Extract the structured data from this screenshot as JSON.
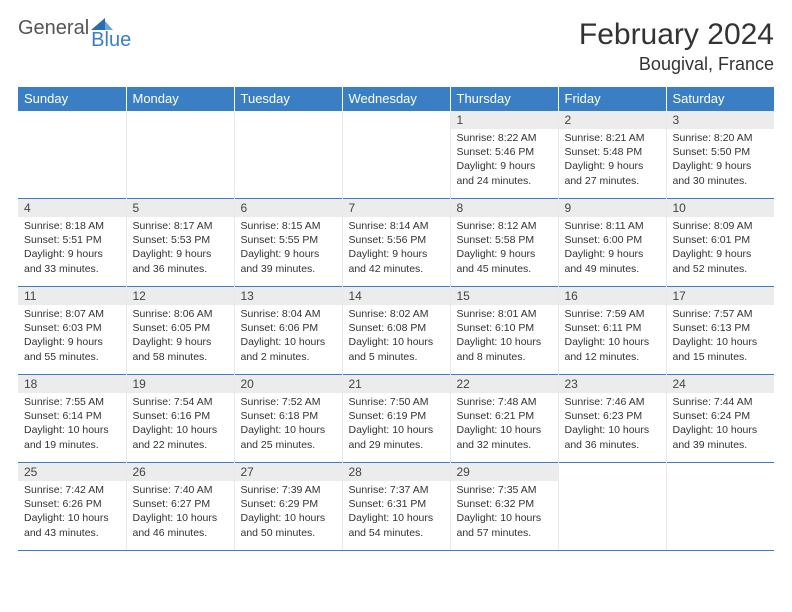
{
  "brand": {
    "part1": "General",
    "part2": "Blue"
  },
  "title": "February 2024",
  "location": "Bougival, France",
  "colors": {
    "header_bg": "#3a7fc4",
    "header_text": "#ffffff",
    "daynum_bg": "#ececec",
    "cell_border": "#e8e8e8",
    "row_divider": "#3a7fc4",
    "text": "#333333"
  },
  "day_labels": [
    "Sunday",
    "Monday",
    "Tuesday",
    "Wednesday",
    "Thursday",
    "Friday",
    "Saturday"
  ],
  "weeks": [
    [
      null,
      null,
      null,
      null,
      {
        "n": "1",
        "sr": "8:22 AM",
        "ss": "5:46 PM",
        "dl": "9 hours and 24 minutes."
      },
      {
        "n": "2",
        "sr": "8:21 AM",
        "ss": "5:48 PM",
        "dl": "9 hours and 27 minutes."
      },
      {
        "n": "3",
        "sr": "8:20 AM",
        "ss": "5:50 PM",
        "dl": "9 hours and 30 minutes."
      }
    ],
    [
      {
        "n": "4",
        "sr": "8:18 AM",
        "ss": "5:51 PM",
        "dl": "9 hours and 33 minutes."
      },
      {
        "n": "5",
        "sr": "8:17 AM",
        "ss": "5:53 PM",
        "dl": "9 hours and 36 minutes."
      },
      {
        "n": "6",
        "sr": "8:15 AM",
        "ss": "5:55 PM",
        "dl": "9 hours and 39 minutes."
      },
      {
        "n": "7",
        "sr": "8:14 AM",
        "ss": "5:56 PM",
        "dl": "9 hours and 42 minutes."
      },
      {
        "n": "8",
        "sr": "8:12 AM",
        "ss": "5:58 PM",
        "dl": "9 hours and 45 minutes."
      },
      {
        "n": "9",
        "sr": "8:11 AM",
        "ss": "6:00 PM",
        "dl": "9 hours and 49 minutes."
      },
      {
        "n": "10",
        "sr": "8:09 AM",
        "ss": "6:01 PM",
        "dl": "9 hours and 52 minutes."
      }
    ],
    [
      {
        "n": "11",
        "sr": "8:07 AM",
        "ss": "6:03 PM",
        "dl": "9 hours and 55 minutes."
      },
      {
        "n": "12",
        "sr": "8:06 AM",
        "ss": "6:05 PM",
        "dl": "9 hours and 58 minutes."
      },
      {
        "n": "13",
        "sr": "8:04 AM",
        "ss": "6:06 PM",
        "dl": "10 hours and 2 minutes."
      },
      {
        "n": "14",
        "sr": "8:02 AM",
        "ss": "6:08 PM",
        "dl": "10 hours and 5 minutes."
      },
      {
        "n": "15",
        "sr": "8:01 AM",
        "ss": "6:10 PM",
        "dl": "10 hours and 8 minutes."
      },
      {
        "n": "16",
        "sr": "7:59 AM",
        "ss": "6:11 PM",
        "dl": "10 hours and 12 minutes."
      },
      {
        "n": "17",
        "sr": "7:57 AM",
        "ss": "6:13 PM",
        "dl": "10 hours and 15 minutes."
      }
    ],
    [
      {
        "n": "18",
        "sr": "7:55 AM",
        "ss": "6:14 PM",
        "dl": "10 hours and 19 minutes."
      },
      {
        "n": "19",
        "sr": "7:54 AM",
        "ss": "6:16 PM",
        "dl": "10 hours and 22 minutes."
      },
      {
        "n": "20",
        "sr": "7:52 AM",
        "ss": "6:18 PM",
        "dl": "10 hours and 25 minutes."
      },
      {
        "n": "21",
        "sr": "7:50 AM",
        "ss": "6:19 PM",
        "dl": "10 hours and 29 minutes."
      },
      {
        "n": "22",
        "sr": "7:48 AM",
        "ss": "6:21 PM",
        "dl": "10 hours and 32 minutes."
      },
      {
        "n": "23",
        "sr": "7:46 AM",
        "ss": "6:23 PM",
        "dl": "10 hours and 36 minutes."
      },
      {
        "n": "24",
        "sr": "7:44 AM",
        "ss": "6:24 PM",
        "dl": "10 hours and 39 minutes."
      }
    ],
    [
      {
        "n": "25",
        "sr": "7:42 AM",
        "ss": "6:26 PM",
        "dl": "10 hours and 43 minutes."
      },
      {
        "n": "26",
        "sr": "7:40 AM",
        "ss": "6:27 PM",
        "dl": "10 hours and 46 minutes."
      },
      {
        "n": "27",
        "sr": "7:39 AM",
        "ss": "6:29 PM",
        "dl": "10 hours and 50 minutes."
      },
      {
        "n": "28",
        "sr": "7:37 AM",
        "ss": "6:31 PM",
        "dl": "10 hours and 54 minutes."
      },
      {
        "n": "29",
        "sr": "7:35 AM",
        "ss": "6:32 PM",
        "dl": "10 hours and 57 minutes."
      },
      null,
      null
    ]
  ],
  "labels": {
    "sunrise": "Sunrise:",
    "sunset": "Sunset:",
    "daylight": "Daylight:"
  }
}
